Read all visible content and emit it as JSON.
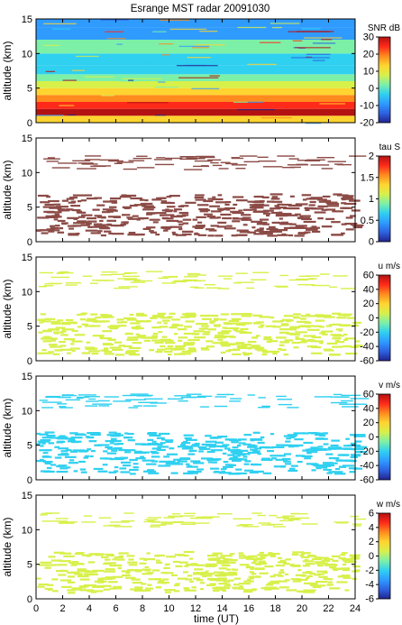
{
  "title": "Esrange MST radar 20091030",
  "xlabel": "time (UT)",
  "colors": {
    "colormap": [
      "#23238e",
      "#2d62e0",
      "#2f9bff",
      "#2fd0f0",
      "#7df0a8",
      "#d8f04a",
      "#ffd430",
      "#ff8a1e",
      "#ff2a1a",
      "#b41212"
    ],
    "tau_fill": "#8c4b46"
  },
  "chart_data": [
    {
      "type": "heatmap",
      "id": "snr",
      "title": "Esrange MST radar 20091030",
      "colorbar_label": "SNR dB",
      "xlabel": "",
      "ylabel": "altitude (km)",
      "xlim": [
        0,
        24
      ],
      "ylim": [
        0,
        15
      ],
      "x_ticks": [
        0,
        2,
        4,
        6,
        8,
        10,
        12,
        14,
        16,
        18,
        20,
        22,
        24
      ],
      "y_ticks": [
        0,
        5,
        10,
        15
      ],
      "cbar_range": [
        -20,
        30
      ],
      "cbar_ticks": [
        "30",
        "20",
        "10",
        "0",
        "-10",
        "-20"
      ],
      "profile": [
        {
          "alt": 0.5,
          "value": 10
        },
        {
          "alt": 1.5,
          "value": 27
        },
        {
          "alt": 2.5,
          "value": 24
        },
        {
          "alt": 3.5,
          "value": 18
        },
        {
          "alt": 4.5,
          "value": 14
        },
        {
          "alt": 5.5,
          "value": 9
        },
        {
          "alt": 6.5,
          "value": 2
        },
        {
          "alt": 7.5,
          "value": -2
        },
        {
          "alt": 9.0,
          "value": -5
        },
        {
          "alt": 11.0,
          "value": 0
        },
        {
          "alt": 13.0,
          "value": -7
        },
        {
          "alt": 14.5,
          "value": -9
        }
      ]
    },
    {
      "type": "heatmap",
      "id": "tau",
      "colorbar_label": "tau S",
      "xlabel": "",
      "ylabel": "altitude (km)",
      "xlim": [
        0,
        24
      ],
      "ylim": [
        0,
        15
      ],
      "x_ticks": [
        0,
        2,
        4,
        6,
        8,
        10,
        12,
        14,
        16,
        18,
        20,
        22,
        24
      ],
      "y_ticks": [
        0,
        5,
        10,
        15
      ],
      "cbar_range": [
        0,
        2
      ],
      "cbar_ticks": [
        "2",
        "1.5",
        "1",
        "0.5",
        "0"
      ],
      "typical_value": 2,
      "coverage": [
        [
          1.0,
          7.0
        ],
        [
          10.5,
          12.5
        ]
      ]
    },
    {
      "type": "heatmap",
      "id": "u",
      "colorbar_label": "u m/s",
      "xlabel": "",
      "ylabel": "altitude (km)",
      "xlim": [
        0,
        24
      ],
      "ylim": [
        0,
        15
      ],
      "x_ticks": [
        0,
        2,
        4,
        6,
        8,
        10,
        12,
        14,
        16,
        18,
        20,
        22,
        24
      ],
      "y_ticks": [
        0,
        5,
        10,
        15
      ],
      "cbar_range": [
        -60,
        60
      ],
      "cbar_ticks": [
        "60",
        "40",
        "20",
        "0",
        "-20",
        "-40",
        "-60"
      ],
      "typical_value": 8,
      "coverage": [
        [
          1.0,
          7.0
        ],
        [
          10.5,
          13.0
        ]
      ]
    },
    {
      "type": "heatmap",
      "id": "v",
      "colorbar_label": "v m/s",
      "xlabel": "",
      "ylabel": "altitude (km)",
      "xlim": [
        0,
        24
      ],
      "ylim": [
        0,
        15
      ],
      "x_ticks": [
        0,
        2,
        4,
        6,
        8,
        10,
        12,
        14,
        16,
        18,
        20,
        22,
        24
      ],
      "y_ticks": [
        0,
        5,
        10,
        15
      ],
      "cbar_range": [
        -60,
        60
      ],
      "cbar_ticks": [
        "60",
        "40",
        "20",
        "0",
        "-20",
        "-40",
        "-60"
      ],
      "typical_value": -22,
      "coverage": [
        [
          1.0,
          7.0
        ],
        [
          10.5,
          12.5
        ]
      ]
    },
    {
      "type": "heatmap",
      "id": "w",
      "colorbar_label": "w m/s",
      "xlabel": "time (UT)",
      "ylabel": "altitude (km)",
      "xlim": [
        0,
        24
      ],
      "ylim": [
        0,
        15
      ],
      "x_ticks": [
        0,
        2,
        4,
        6,
        8,
        10,
        12,
        14,
        16,
        18,
        20,
        22,
        24
      ],
      "y_ticks": [
        0,
        5,
        10,
        15
      ],
      "cbar_range": [
        -6,
        6
      ],
      "cbar_ticks": [
        "6",
        "4",
        "2",
        "0",
        "-2",
        "-4",
        "-6"
      ],
      "typical_value": 0.5,
      "coverage": [
        [
          1.0,
          7.0
        ],
        [
          10.5,
          12.5
        ]
      ]
    }
  ]
}
